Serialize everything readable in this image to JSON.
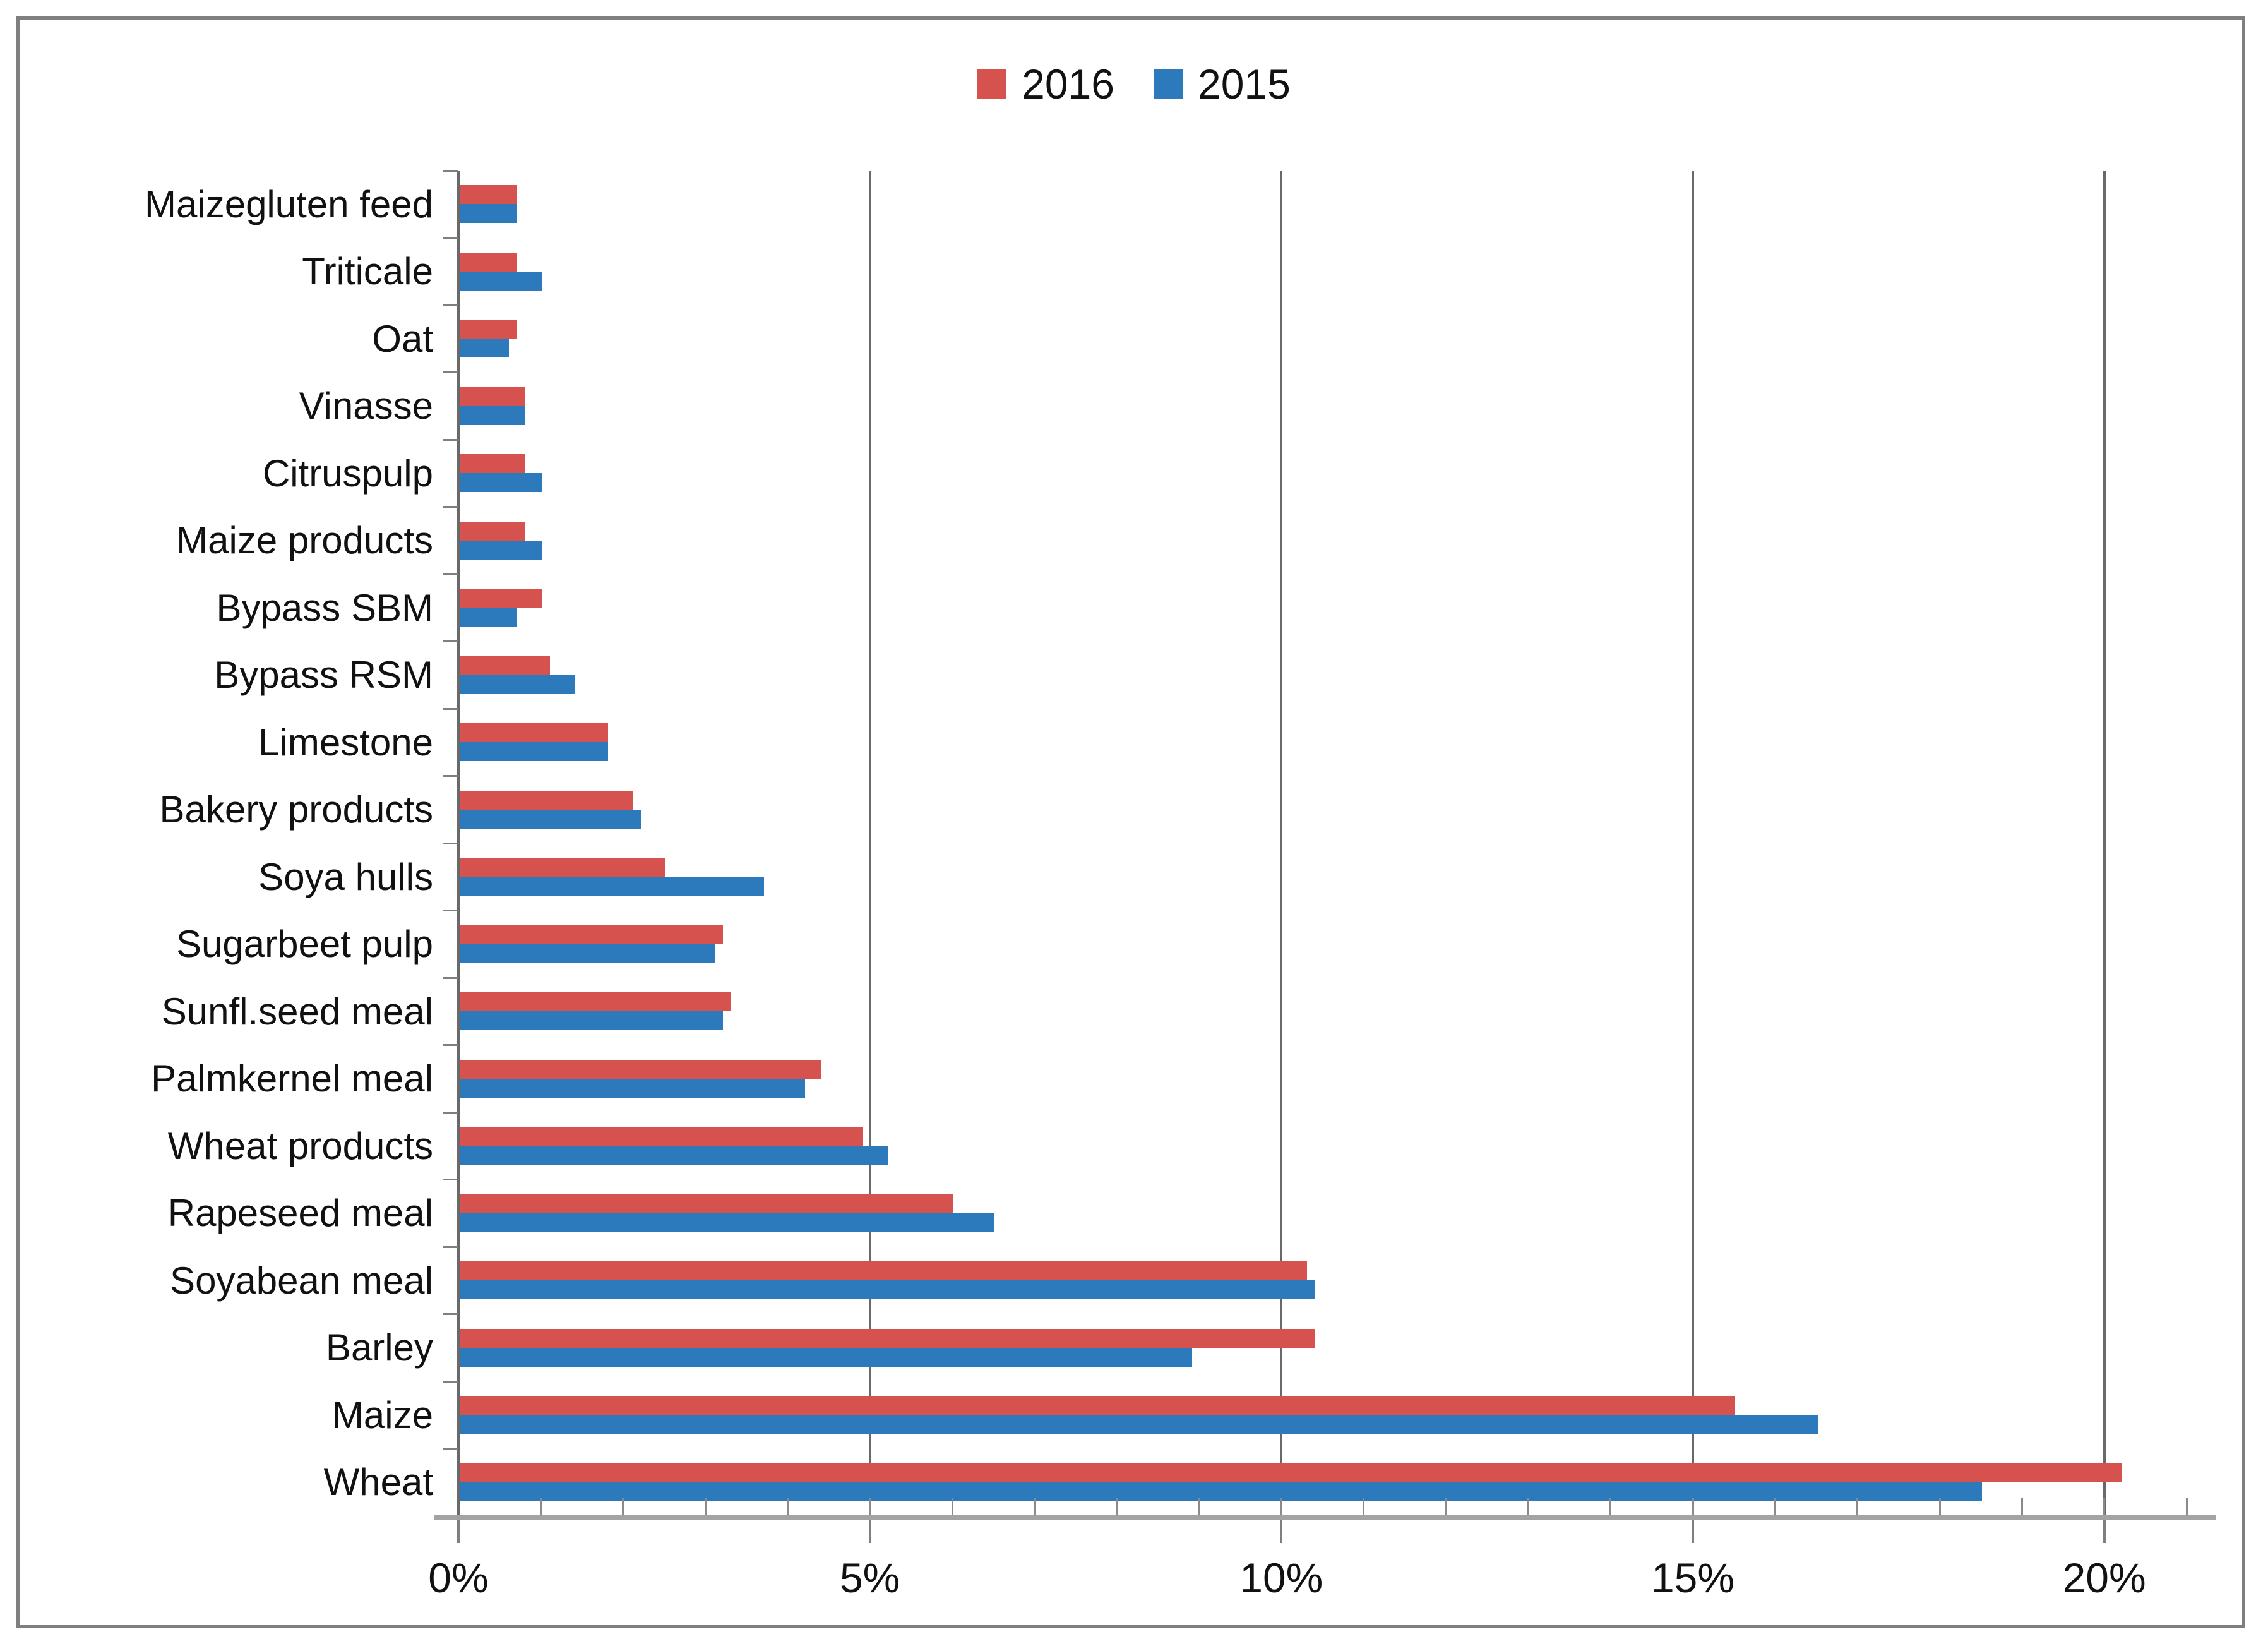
{
  "legend": [
    {
      "label": "2016",
      "color": "#d5524e"
    },
    {
      "label": "2015",
      "color": "#2c79bc"
    }
  ],
  "chart_data": {
    "type": "bar",
    "orientation": "horizontal",
    "title": "",
    "xlabel": "",
    "ylabel": "",
    "grid": true,
    "legend_position": "top",
    "categories": [
      "Maizegluten feed",
      "Triticale",
      "Oat",
      "Vinasse",
      "Citruspulp",
      "Maize products",
      "Bypass SBM",
      "Bypass RSM",
      "Limestone",
      "Bakery products",
      "Soya hulls",
      "Sugarbeet pulp",
      "Sunfl.seed meal",
      "Palmkernel meal",
      "Wheat products",
      "Rapeseed meal",
      "Soyabean meal",
      "Barley",
      "Maize",
      "Wheat"
    ],
    "series": [
      {
        "name": "2016",
        "color": "#d5524e",
        "values": [
          0.7,
          0.7,
          0.7,
          0.8,
          0.8,
          0.8,
          1.0,
          1.1,
          1.8,
          2.1,
          2.5,
          3.2,
          3.3,
          4.4,
          4.9,
          6.0,
          10.3,
          10.4,
          15.5,
          20.2
        ]
      },
      {
        "name": "2015",
        "color": "#2c79bc",
        "values": [
          0.7,
          1.0,
          0.6,
          0.8,
          1.0,
          1.0,
          0.7,
          1.4,
          1.8,
          2.2,
          3.7,
          3.1,
          3.2,
          4.2,
          5.2,
          6.5,
          10.4,
          8.9,
          16.5,
          18.5
        ]
      }
    ],
    "x_axis": {
      "tick_labels": [
        "0%",
        "5%",
        "10%",
        "15%",
        "20%"
      ],
      "tick_values": [
        0,
        5,
        10,
        15,
        20
      ],
      "minor_tick_step": 1,
      "min": 0,
      "max": 21,
      "unit": "%"
    }
  }
}
